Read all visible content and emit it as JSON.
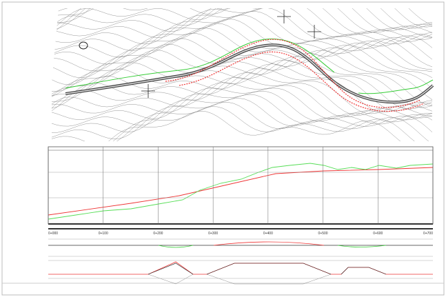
{
  "profile": {
    "stations": [
      "0+000",
      "0+100",
      "0+200",
      "0+300",
      "0+400",
      "0+500",
      "0+600",
      "0+700"
    ]
  }
}
